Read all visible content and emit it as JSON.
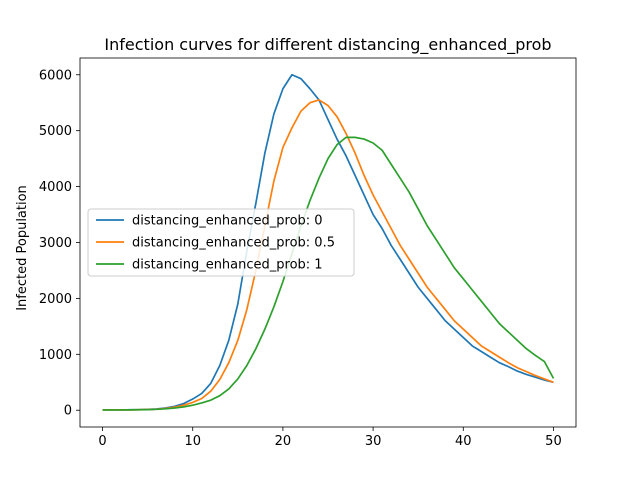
{
  "chart_data": {
    "type": "line",
    "title": "Infection curves for different distancing_enhanced_prob",
    "xlabel": "",
    "ylabel": "Infected Population",
    "xlim": [
      -2.5,
      52.5
    ],
    "ylim": [
      -300,
      6300
    ],
    "xticks": [
      0,
      10,
      20,
      30,
      40,
      50
    ],
    "yticks": [
      0,
      1000,
      2000,
      3000,
      4000,
      5000,
      6000
    ],
    "grid": false,
    "legend_position": "center-left",
    "x": [
      0,
      1,
      2,
      3,
      4,
      5,
      6,
      7,
      8,
      9,
      10,
      11,
      12,
      13,
      14,
      15,
      16,
      17,
      18,
      19,
      20,
      21,
      22,
      23,
      24,
      25,
      26,
      27,
      28,
      29,
      30,
      31,
      32,
      33,
      34,
      35,
      36,
      37,
      38,
      39,
      40,
      41,
      42,
      43,
      44,
      45,
      46,
      47,
      48,
      49,
      50
    ],
    "series": [
      {
        "name": "distancing_enhanced_prob: 0",
        "color": "#1f77b4",
        "values": [
          5,
          5,
          6,
          8,
          10,
          15,
          22,
          40,
          70,
          120,
          200,
          300,
          480,
          800,
          1250,
          1900,
          2850,
          3700,
          4600,
          5300,
          5750,
          6000,
          5930,
          5750,
          5550,
          5200,
          4850,
          4550,
          4200,
          3850,
          3500,
          3250,
          2950,
          2700,
          2450,
          2200,
          2000,
          1800,
          1600,
          1450,
          1300,
          1150,
          1050,
          950,
          850,
          780,
          700,
          640,
          590,
          540,
          500
        ]
      },
      {
        "name": "distancing_enhanced_prob: 0.5",
        "color": "#ff7f0e",
        "values": [
          5,
          5,
          6,
          7,
          9,
          13,
          19,
          32,
          55,
          90,
          140,
          210,
          340,
          550,
          850,
          1250,
          1800,
          2500,
          3300,
          4100,
          4700,
          5050,
          5350,
          5500,
          5550,
          5450,
          5250,
          4950,
          4600,
          4200,
          3850,
          3550,
          3250,
          2950,
          2700,
          2450,
          2200,
          2000,
          1800,
          1600,
          1450,
          1300,
          1150,
          1050,
          950,
          850,
          760,
          690,
          620,
          560,
          500
        ]
      },
      {
        "name": "distancing_enhanced_prob: 1",
        "color": "#2ca02c",
        "values": [
          5,
          5,
          5,
          6,
          8,
          11,
          16,
          25,
          40,
          60,
          90,
          130,
          180,
          260,
          380,
          560,
          800,
          1100,
          1450,
          1850,
          2300,
          2800,
          3300,
          3750,
          4150,
          4500,
          4750,
          4880,
          4880,
          4850,
          4780,
          4650,
          4400,
          4150,
          3900,
          3600,
          3300,
          3050,
          2800,
          2550,
          2350,
          2150,
          1950,
          1750,
          1550,
          1400,
          1250,
          1100,
          980,
          870,
          570
        ]
      }
    ]
  }
}
